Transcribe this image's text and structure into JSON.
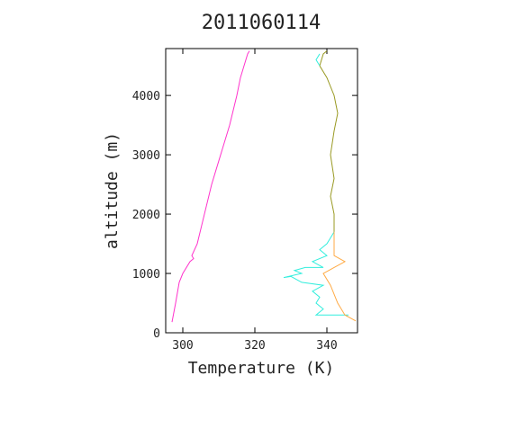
{
  "chart_data": {
    "type": "line",
    "title": "2011060114",
    "x_label": "Temperature (K)",
    "y_label": "altitude (m)",
    "xlim": [
      295.25,
      348.5
    ],
    "ylim": [
      0,
      4790
    ],
    "xticks": [
      300,
      320,
      340
    ],
    "yticks": [
      0,
      1000,
      2000,
      3000,
      4000
    ],
    "series": [
      {
        "color": "#ff33cc",
        "x": [
          297,
          298,
          299,
          300,
          302,
          303,
          302.5,
          304,
          306,
          308,
          310,
          311,
          313,
          315,
          316,
          317,
          318,
          318.5
        ],
        "values": [
          180,
          500,
          850,
          1000,
          1200,
          1250,
          1300,
          1500,
          2000,
          2500,
          2900,
          3100,
          3500,
          4000,
          4300,
          4500,
          4700,
          4750
        ]
      },
      {
        "color": "#33eedd",
        "x": [
          346,
          337,
          339,
          337,
          338,
          336,
          339,
          333,
          330,
          328,
          333,
          331,
          334,
          339,
          336,
          340,
          338,
          340,
          341,
          342
        ],
        "values": [
          300,
          300,
          400,
          500,
          600,
          700,
          800,
          850,
          950,
          930,
          1000,
          1050,
          1100,
          1100,
          1200,
          1300,
          1400,
          1500,
          1600,
          1700
        ]
      },
      {
        "color": "#ffaa44",
        "x": [
          348,
          345,
          343,
          341,
          339,
          342,
          345,
          342,
          342,
          342
        ],
        "values": [
          200,
          300,
          500,
          800,
          1000,
          1100,
          1200,
          1300,
          1500,
          1700
        ]
      },
      {
        "color": "#999922",
        "x": [
          342,
          342,
          341,
          342,
          341,
          342,
          343,
          342,
          340,
          338,
          339,
          340
        ],
        "values": [
          1700,
          2000,
          2300,
          2600,
          3000,
          3400,
          3700,
          4000,
          4300,
          4500,
          4700,
          4750
        ]
      },
      {
        "color": "#33eedd",
        "x": [
          338,
          337,
          338
        ],
        "values": [
          4500,
          4600,
          4700
        ]
      }
    ]
  }
}
